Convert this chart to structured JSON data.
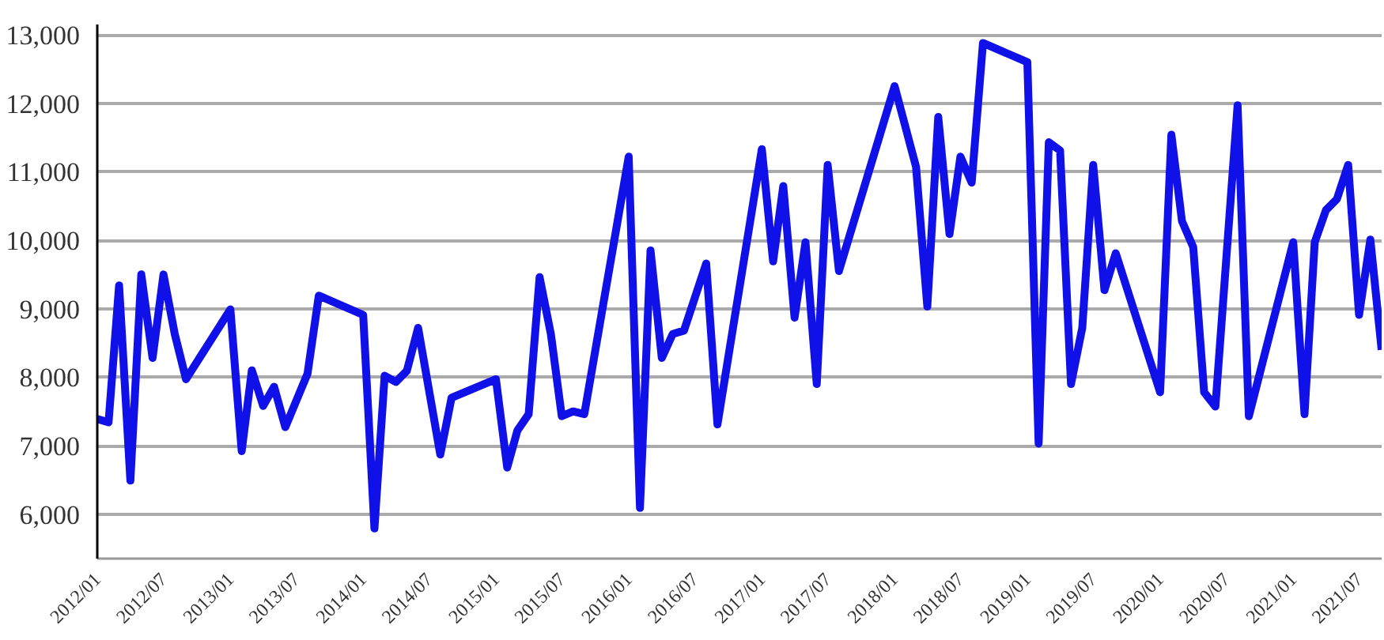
{
  "chart_data": {
    "type": "line",
    "x": [
      "2012-01",
      "2012-02",
      "2012-03",
      "2012-04",
      "2012-05",
      "2012-06",
      "2012-07",
      "2012-08",
      "2012-09",
      "2013-01",
      "2013-02",
      "2013-03",
      "2013-04",
      "2013-05",
      "2013-06",
      "2013-08",
      "2013-09",
      "2014-01",
      "2014-02",
      "2014-03",
      "2014-04",
      "2014-05",
      "2014-06",
      "2014-08",
      "2014-09",
      "2015-01",
      "2015-02",
      "2015-03",
      "2015-04",
      "2015-05",
      "2015-06",
      "2015-07",
      "2015-08",
      "2015-09",
      "2016-01",
      "2016-02",
      "2016-03",
      "2016-04",
      "2016-05",
      "2016-06",
      "2016-08",
      "2016-09",
      "2017-01",
      "2017-02",
      "2017-03",
      "2017-04",
      "2017-05",
      "2017-06",
      "2017-07",
      "2017-08",
      "2018-01",
      "2018-03",
      "2018-04",
      "2018-05",
      "2018-06",
      "2018-07",
      "2018-08",
      "2018-09",
      "2019-01",
      "2019-02",
      "2019-03",
      "2019-04",
      "2019-05",
      "2019-06",
      "2019-07",
      "2019-08",
      "2019-09",
      "2020-01",
      "2020-02",
      "2020-03",
      "2020-04",
      "2020-05",
      "2020-06",
      "2020-08",
      "2020-09",
      "2021-01",
      "2021-02",
      "2021-03",
      "2021-04",
      "2021-05",
      "2021-06",
      "2021-07",
      "2021-08",
      "2021-09"
    ],
    "series": [
      {
        "color": "#1010e8",
        "values": [
          7390,
          7340,
          9340,
          6490,
          9500,
          8280,
          9500,
          8630,
          7970,
          8990,
          6920,
          8100,
          7580,
          7860,
          7270,
          8050,
          9190,
          8910,
          5790,
          8020,
          7930,
          8090,
          8720,
          6870,
          7700,
          7970,
          6680,
          7220,
          7460,
          9460,
          8630,
          7430,
          7500,
          7460,
          11220,
          6090,
          9850,
          8280,
          8630,
          8680,
          9660,
          7310,
          11330,
          9690,
          10790,
          8870,
          9970,
          7900,
          11100,
          9550,
          12250,
          11070,
          9030,
          11800,
          10090,
          11220,
          10840,
          12880,
          12600,
          7030,
          11430,
          11310,
          7900,
          8720,
          11100,
          9270,
          9810,
          7780,
          11540,
          10280,
          9900,
          7780,
          7570,
          11970,
          7430,
          9970,
          7460,
          9970,
          10440,
          10600,
          11100,
          8910,
          10010,
          8400
        ]
      }
    ],
    "xlim": [
      "2012-01",
      "2021-09"
    ],
    "xticks": [
      {
        "value": "2012-01",
        "label": "2012/01"
      },
      {
        "value": "2012-07",
        "label": "2012/07"
      },
      {
        "value": "2013-01",
        "label": "2013/01"
      },
      {
        "value": "2013-07",
        "label": "2013/07"
      },
      {
        "value": "2014-01",
        "label": "2014/01"
      },
      {
        "value": "2014-07",
        "label": "2014/07"
      },
      {
        "value": "2015-01",
        "label": "2015/01"
      },
      {
        "value": "2015-07",
        "label": "2015/07"
      },
      {
        "value": "2016-01",
        "label": "2016/01"
      },
      {
        "value": "2016-07",
        "label": "2016/07"
      },
      {
        "value": "2017-01",
        "label": "2017/01"
      },
      {
        "value": "2017-07",
        "label": "2017/07"
      },
      {
        "value": "2018-01",
        "label": "2018/01"
      },
      {
        "value": "2018-07",
        "label": "2018/07"
      },
      {
        "value": "2019-01",
        "label": "2019/01"
      },
      {
        "value": "2019-07",
        "label": "2019/07"
      },
      {
        "value": "2020-01",
        "label": "2020/01"
      },
      {
        "value": "2020-07",
        "label": "2020/07"
      },
      {
        "value": "2021-01",
        "label": "2021/01"
      },
      {
        "value": "2021-07",
        "label": "2021/07"
      }
    ],
    "ylim": [
      5350,
      13150
    ],
    "yticks": [
      {
        "value": 6000,
        "label": "6,000"
      },
      {
        "value": 7000,
        "label": "7,000"
      },
      {
        "value": 8000,
        "label": "8,000"
      },
      {
        "value": 9000,
        "label": "9,000"
      },
      {
        "value": 10000,
        "label": "10,000"
      },
      {
        "value": 11000,
        "label": "11,000"
      },
      {
        "value": 12000,
        "label": "12,000"
      },
      {
        "value": 13000,
        "label": "13,000"
      }
    ],
    "grid": "y"
  }
}
